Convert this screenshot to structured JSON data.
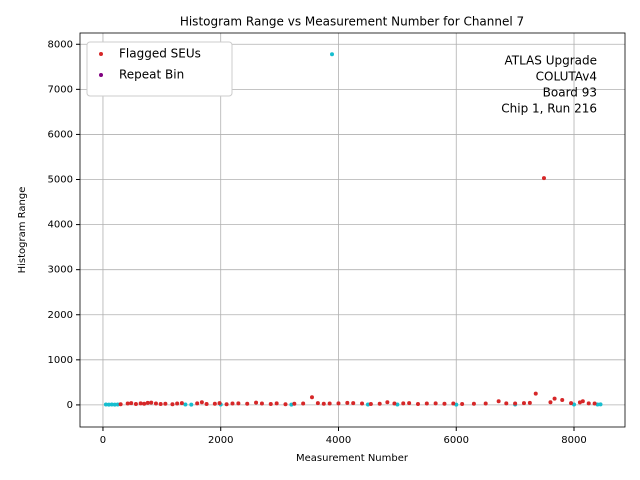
{
  "chart_data": {
    "type": "scatter",
    "title": "Histogram Range vs Measurement Number for Channel 7",
    "xlabel": "Measurement Number",
    "ylabel": "Histogram Range",
    "annotation": [
      "ATLAS Upgrade",
      "COLUTAv4",
      "Board 93",
      "Chip 1, Run 216"
    ],
    "xlim": [
      -390,
      8866
    ],
    "ylim": [
      -490,
      8250
    ],
    "xticks": [
      0,
      2000,
      4000,
      6000,
      8000
    ],
    "yticks": [
      0,
      1000,
      2000,
      3000,
      4000,
      5000,
      6000,
      7000,
      8000
    ],
    "grid": true,
    "legend": "upper left",
    "series": [
      {
        "color": "#17becf",
        "x": [
          50,
          100,
          150,
          200,
          250,
          1400,
          1500,
          2000,
          3200,
          3890,
          4500,
          5000,
          6000,
          7000,
          8000,
          8400,
          8450
        ],
        "values": [
          8,
          6,
          10,
          7,
          9,
          8,
          6,
          10,
          7,
          7780,
          8,
          9,
          7,
          8,
          10,
          9,
          12
        ]
      },
      {
        "name": "Flagged SEUs",
        "color": "#d62728",
        "x": [
          300,
          420,
          480,
          560,
          640,
          700,
          760,
          820,
          900,
          980,
          1060,
          1180,
          1260,
          1340,
          1600,
          1680,
          1760,
          1900,
          1980,
          2100,
          2200,
          2300,
          2450,
          2600,
          2700,
          2850,
          2950,
          3100,
          3250,
          3400,
          3550,
          3650,
          3750,
          3850,
          4000,
          4150,
          4250,
          4400,
          4550,
          4700,
          4830,
          4950,
          5100,
          5200,
          5350,
          5500,
          5650,
          5800,
          5950,
          6100,
          6300,
          6500,
          6720,
          6850,
          7000,
          7150,
          7250,
          7350,
          7490,
          7600,
          7670,
          7800,
          7950,
          8100,
          8150,
          8250,
          8350
        ],
        "values": [
          15,
          30,
          40,
          20,
          35,
          25,
          45,
          50,
          30,
          20,
          25,
          15,
          30,
          40,
          35,
          60,
          20,
          25,
          40,
          15,
          30,
          35,
          25,
          50,
          30,
          20,
          35,
          15,
          25,
          30,
          170,
          40,
          25,
          30,
          35,
          45,
          40,
          30,
          20,
          25,
          60,
          30,
          35,
          40,
          20,
          30,
          35,
          25,
          30,
          20,
          25,
          30,
          80,
          35,
          30,
          40,
          45,
          250,
          5030,
          60,
          140,
          110,
          40,
          55,
          80,
          35,
          30
        ]
      },
      {
        "name": "Repeat Bin",
        "color": "#800080",
        "x": [],
        "values": []
      }
    ]
  }
}
